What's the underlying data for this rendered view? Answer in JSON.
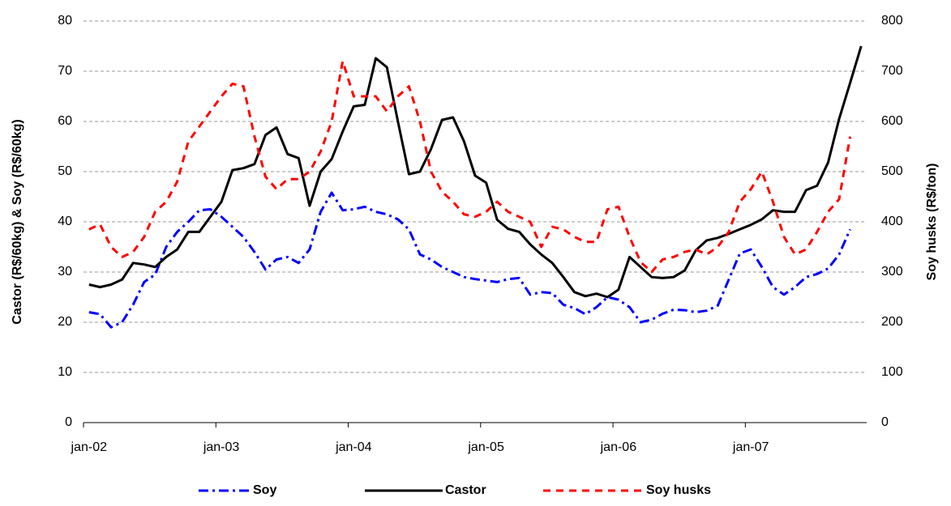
{
  "chart_data": {
    "type": "line",
    "categories": [
      "jan-02",
      null,
      null,
      null,
      null,
      null,
      null,
      null,
      null,
      null,
      null,
      null,
      "jan-03",
      null,
      null,
      null,
      null,
      null,
      null,
      null,
      null,
      null,
      null,
      null,
      "jan-04",
      null,
      null,
      null,
      null,
      null,
      null,
      null,
      null,
      null,
      null,
      null,
      "jan-05",
      null,
      null,
      null,
      null,
      null,
      null,
      null,
      null,
      null,
      null,
      null,
      "jan-06",
      null,
      null,
      null,
      null,
      null,
      null,
      null,
      null,
      null,
      null,
      null,
      "jan-07",
      null,
      null,
      null,
      null,
      null,
      null,
      null,
      null,
      null,
      null
    ],
    "series": [
      {
        "name": "Soy",
        "color": "#0000ff",
        "dash": "dashdot",
        "axis": "y",
        "values": [
          22,
          21.6,
          19,
          20,
          23.5,
          28,
          29.5,
          35,
          38,
          40,
          42.3,
          42.5,
          41,
          39,
          37,
          34,
          30.5,
          32.5,
          33,
          31.8,
          34.5,
          42,
          45.8,
          42.3,
          42.5,
          43,
          42,
          41.5,
          40.5,
          38.5,
          33.5,
          32.5,
          31,
          30,
          29,
          28.6,
          28.3,
          28,
          28.6,
          28.8,
          25.5,
          26,
          25.8,
          23.5,
          22.8,
          21.6,
          23,
          25,
          24.5,
          23,
          20,
          20.5,
          21.7,
          22.5,
          22.4,
          22,
          22.3,
          23.3,
          28.5,
          33.7,
          34.5,
          31,
          27,
          25.5,
          27,
          29,
          29.6,
          30.7,
          33.5,
          38.5,
          null
        ]
      },
      {
        "name": "Castor",
        "color": "#000000",
        "dash": "solid",
        "axis": "y",
        "values": [
          27.5,
          27,
          27.5,
          28.5,
          31.8,
          31.5,
          31,
          33,
          34.5,
          38,
          38,
          41,
          44,
          50.3,
          50.7,
          51.5,
          57.3,
          58.8,
          53.5,
          52.7,
          43.2,
          50,
          52.5,
          58,
          63,
          63.3,
          72.6,
          70.8,
          60,
          49.5,
          50,
          54.5,
          60.3,
          60.8,
          56,
          49.2,
          47.8,
          40.4,
          38.6,
          38,
          35.5,
          33.5,
          31.8,
          29,
          26,
          25.2,
          25.7,
          25,
          26.5,
          33,
          31,
          29,
          28.8,
          29,
          30.3,
          34.3,
          36.3,
          36.8,
          37.6,
          38.5,
          39.4,
          40.5,
          42.3,
          42,
          42,
          46.3,
          47.2,
          51.8,
          60.5,
          67.7,
          75
        ]
      },
      {
        "name": "Soy husks",
        "color": "#ff0000",
        "dash": "dash",
        "axis": "y2",
        "values": [
          385,
          395,
          350,
          330,
          340,
          370,
          420,
          440,
          480,
          560,
          590,
          620,
          650,
          675,
          670,
          570,
          490,
          465,
          485,
          485,
          500,
          540,
          600,
          720,
          650,
          650,
          650,
          620,
          650,
          670,
          600,
          500,
          460,
          440,
          415,
          410,
          420,
          440,
          420,
          410,
          400,
          350,
          390,
          385,
          370,
          360,
          360,
          425,
          430,
          370,
          320,
          300,
          325,
          330,
          340,
          345,
          335,
          350,
          380,
          440,
          465,
          500,
          440,
          370,
          335,
          345,
          380,
          420,
          445,
          570,
          null
        ]
      }
    ],
    "y_label": "Castor (R$/60kg) & Soy (R$/60kg)",
    "y2_label": "Soy husks (R$/ton)",
    "ylim": [
      0,
      80
    ],
    "yticks": [
      0,
      10,
      20,
      30,
      40,
      50,
      60,
      70,
      80
    ],
    "y2lim": [
      0,
      800
    ],
    "y2ticks": [
      0,
      100,
      200,
      300,
      400,
      500,
      600,
      700,
      800
    ],
    "grid": true,
    "legend": "bottom"
  }
}
